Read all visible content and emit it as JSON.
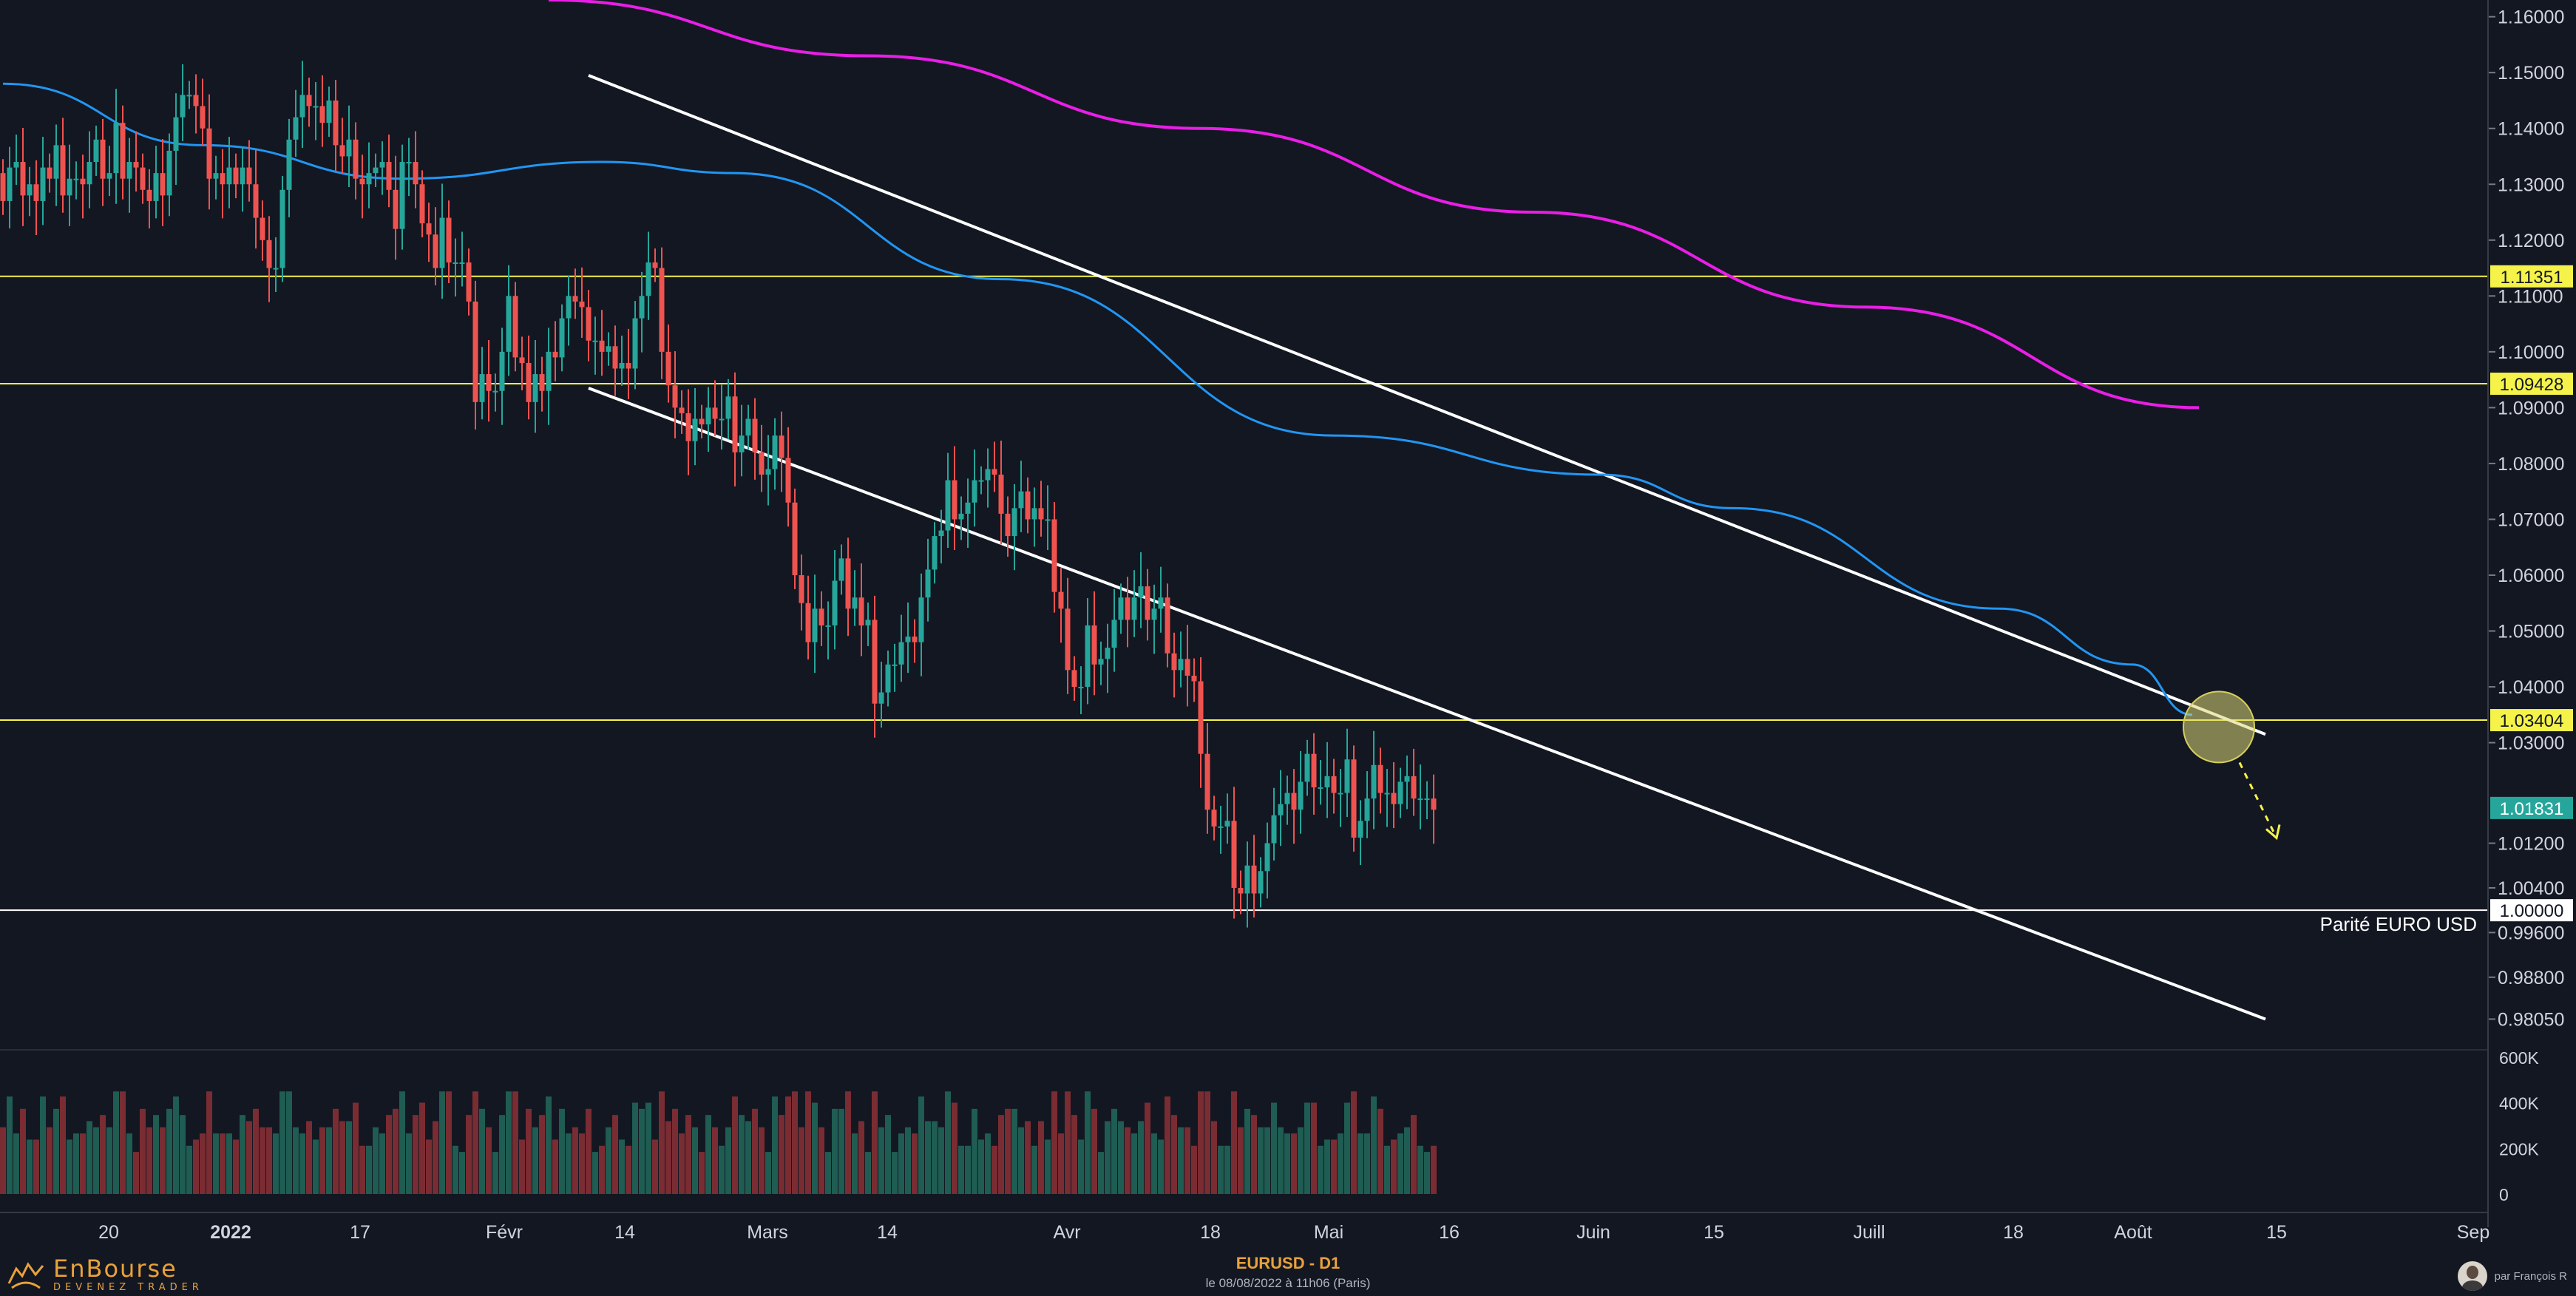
{
  "chart_data": {
    "type": "candlestick",
    "title": "EURUSD - D1",
    "subtitle": "le 08/08/2022 à 11h06 (Paris)",
    "y_range": [
      0.975,
      1.163
    ],
    "y_tick_labels": [
      "1.16000",
      "1.15000",
      "1.14000",
      "1.13000",
      "1.12000",
      "1.11000",
      "1.10000",
      "1.09000",
      "1.08000",
      "1.07000",
      "1.06000",
      "1.05000",
      "1.04000",
      "1.03000",
      "1.01200",
      "1.00400",
      "0.99600",
      "0.98800",
      "0.98050"
    ],
    "x_tick_labels": [
      "20",
      "2022",
      "17",
      "Févr",
      "14",
      "Mars",
      "14",
      "Avr",
      "18",
      "Mai",
      "16",
      "Juin",
      "15",
      "Juill",
      "18",
      "Août",
      "15",
      "Sep"
    ],
    "horizontal_levels": [
      {
        "value": 1.11351,
        "label": "1.11351",
        "color": "#f5f34a"
      },
      {
        "value": 1.09428,
        "label": "1.09428",
        "color": "#f5f34a"
      },
      {
        "value": 1.03404,
        "label": "1.03404",
        "color": "#f5f34a"
      },
      {
        "value": 1.0,
        "label": "1.00000",
        "color": "#ffffff",
        "annotation": "Parité EURO USD"
      }
    ],
    "last_price": {
      "value": 1.01831,
      "label": "1.01831",
      "color": "#26a69a"
    },
    "colors": {
      "up": "#26a69a",
      "down": "#ef5350",
      "ma_fast": "#2196f3",
      "ma_slow": "#e91ee6",
      "volume_up": "#1f5c52",
      "volume_down": "#7a2c33"
    },
    "ohlc_start_close": 1.132,
    "closes": [
      1.127,
      1.133,
      1.134,
      1.128,
      1.13,
      1.127,
      1.133,
      1.131,
      1.137,
      1.128,
      1.131,
      1.131,
      1.13,
      1.134,
      1.138,
      1.131,
      1.132,
      1.141,
      1.131,
      1.134,
      1.133,
      1.129,
      1.127,
      1.132,
      1.128,
      1.136,
      1.142,
      1.146,
      1.146,
      1.144,
      1.14,
      1.131,
      1.132,
      1.13,
      1.133,
      1.13,
      1.133,
      1.13,
      1.124,
      1.12,
      1.115,
      1.115,
      1.129,
      1.138,
      1.142,
      1.146,
      1.144,
      1.144,
      1.141,
      1.145,
      1.137,
      1.135,
      1.138,
      1.131,
      1.13,
      1.132,
      1.133,
      1.134,
      1.129,
      1.122,
      1.134,
      1.134,
      1.13,
      1.123,
      1.121,
      1.115,
      1.124,
      1.116,
      1.116,
      1.116,
      1.109,
      1.091,
      1.096,
      1.093,
      1.093,
      1.1,
      1.11,
      1.099,
      1.098,
      1.091,
      1.096,
      1.093,
      1.1,
      1.099,
      1.106,
      1.11,
      1.109,
      1.108,
      1.102,
      1.102,
      1.1,
      1.101,
      1.097,
      1.098,
      1.097,
      1.106,
      1.11,
      1.116,
      1.115,
      1.1,
      1.094,
      1.09,
      1.089,
      1.084,
      1.088,
      1.087,
      1.09,
      1.088,
      1.088,
      1.092,
      1.082,
      1.085,
      1.088,
      1.082,
      1.078,
      1.079,
      1.085,
      1.081,
      1.073,
      1.06,
      1.055,
      1.048,
      1.054,
      1.051,
      1.051,
      1.059,
      1.063,
      1.054,
      1.056,
      1.051,
      1.052,
      1.037,
      1.039,
      1.044,
      1.044,
      1.048,
      1.049,
      1.048,
      1.056,
      1.061,
      1.067,
      1.068,
      1.077,
      1.07,
      1.071,
      1.073,
      1.077,
      1.077,
      1.079,
      1.078,
      1.071,
      1.067,
      1.072,
      1.075,
      1.07,
      1.072,
      1.07,
      1.07,
      1.057,
      1.054,
      1.043,
      1.04,
      1.04,
      1.051,
      1.044,
      1.045,
      1.047,
      1.052,
      1.056,
      1.052,
      1.056,
      1.058,
      1.052,
      1.054,
      1.056,
      1.046,
      1.043,
      1.045,
      1.042,
      1.041,
      1.028,
      1.018,
      1.015,
      1.015,
      1.016,
      1.004,
      1.003,
      1.008,
      1.003,
      1.007,
      1.012,
      1.017,
      1.019,
      1.021,
      1.018,
      1.023,
      1.028,
      1.022,
      1.022,
      1.024,
      1.021,
      1.021,
      1.027,
      1.013,
      1.016,
      1.02,
      1.026,
      1.021,
      1.021,
      1.019,
      1.023,
      1.024,
      1.02,
      1.02,
      1.02,
      1.018
    ],
    "moving_average_fast_waypoints": [
      [
        0,
        1.148
      ],
      [
        30,
        1.137
      ],
      [
        60,
        1.131
      ],
      [
        90,
        1.134
      ],
      [
        110,
        1.132
      ],
      [
        150,
        1.113
      ],
      [
        200,
        1.085
      ],
      [
        240,
        1.078
      ],
      [
        260,
        1.072
      ],
      [
        300,
        1.054
      ],
      [
        320,
        1.044
      ],
      [
        329,
        1.035
      ]
    ],
    "moving_average_slow_waypoints": [
      [
        82,
        1.163
      ],
      [
        130,
        1.153
      ],
      [
        180,
        1.14
      ],
      [
        230,
        1.125
      ],
      [
        280,
        1.108
      ],
      [
        330,
        1.09
      ]
    ]
  },
  "labels": {
    "parity": "Parité EURO USD",
    "volume_ticks": [
      "600K",
      "400K",
      "200K",
      "0"
    ]
  },
  "branding": {
    "logo_name": "EnBourse",
    "logo_tagline": "DEVENEZ TRADER",
    "author": "par François R"
  }
}
